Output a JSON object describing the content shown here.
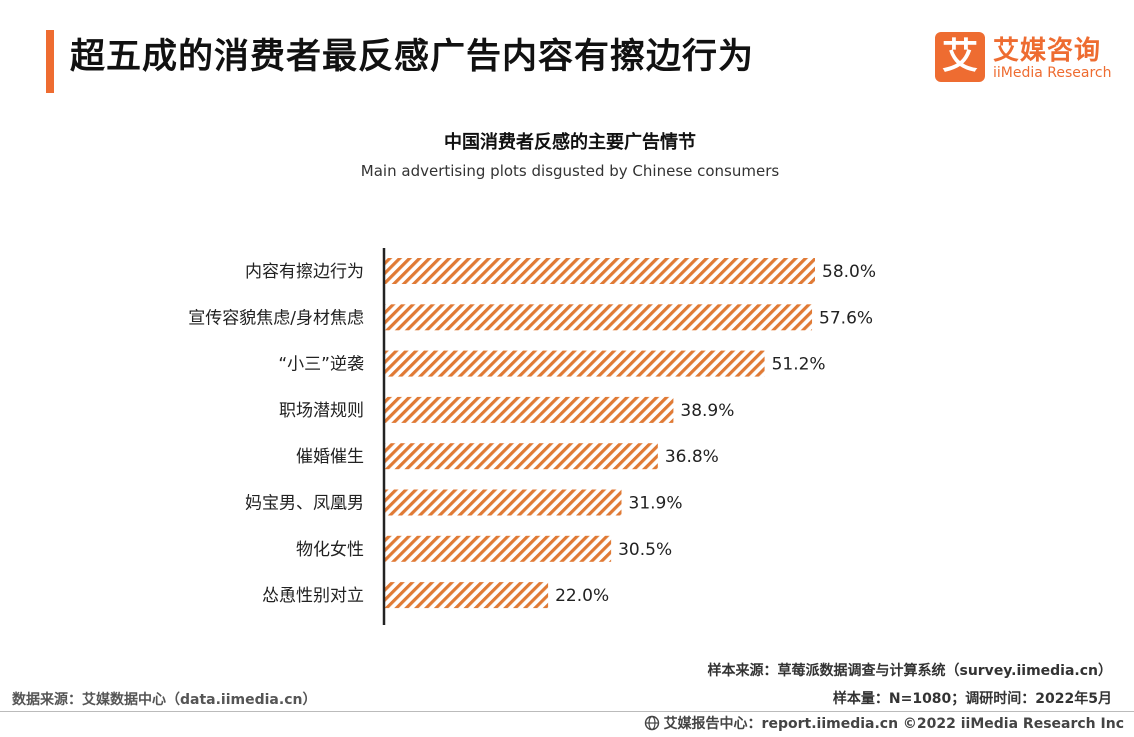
{
  "header": {
    "title": "超五成的消费者最反感广告内容有擦边行为",
    "accent_color": "#ee6c31"
  },
  "brand": {
    "mark": "艾",
    "name_cn": "艾媒咨询",
    "name_en": "iiMedia Research",
    "color": "#ee6c31"
  },
  "chart_data": {
    "type": "bar",
    "orientation": "horizontal",
    "title": "中国消费者反感的主要广告情节",
    "subtitle": "Main advertising plots disgusted by Chinese consumers",
    "categories": [
      "内容有擦边行为",
      "宣传容貌焦虑/身材焦虑",
      "“小三”逆袭",
      "职场潜规则",
      "催婚催生",
      "妈宝男、凤凰男",
      "物化女性",
      "怂恿性别对立"
    ],
    "values": [
      58.0,
      57.6,
      51.2,
      38.9,
      36.8,
      31.9,
      30.5,
      22.0
    ],
    "value_labels": [
      "58.0%",
      "57.6%",
      "51.2%",
      "38.9%",
      "36.8%",
      "31.9%",
      "30.5%",
      "22.0%"
    ],
    "unit": "%",
    "xlim": [
      0,
      60
    ],
    "bar_color": "#e07a35",
    "bar_pattern": "diagonal-hatch",
    "grid": false,
    "legend": "none"
  },
  "sources": {
    "sample_source": "样本来源：草莓派数据调查与计算系统（survey.iimedia.cn）",
    "sample_size": "样本量：N=1080；调研时间：2022年5月",
    "data_source": "数据来源：艾媒数据中心（data.iimedia.cn）"
  },
  "footer": {
    "globe_icon": "globe-icon",
    "text": "艾媒报告中心：report.iimedia.cn  ©2022  iiMedia Research  Inc"
  }
}
